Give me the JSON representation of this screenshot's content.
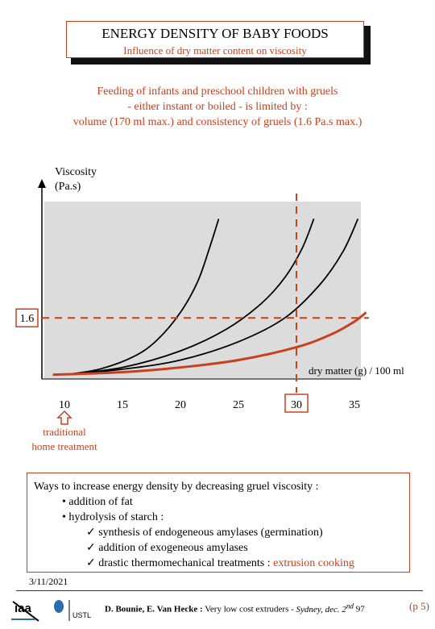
{
  "header": {
    "title": "ENERGY DENSITY OF BABY FOODS",
    "subtitle": "Influence of dry matter content on viscosity"
  },
  "intro": {
    "line1": "Feeding of infants and preschool children with gruels",
    "line2": "- either instant or boiled - is limited by :",
    "line3": "volume (170 ml max.) and consistency of gruels (1.6 Pa.s max.)"
  },
  "chart_data": {
    "type": "line",
    "ylabel_line1": "Viscosity",
    "ylabel_line2": "(Pa.s)",
    "xlabel": "dry matter (g) / 100 ml",
    "x_ticks": [
      "10",
      "15",
      "20",
      "25",
      "30",
      "35"
    ],
    "x_tick_values": [
      10,
      15,
      20,
      25,
      30,
      35
    ],
    "xlim": [
      9,
      36
    ],
    "y_threshold_label": "1.6",
    "y_threshold": 1.6,
    "x_threshold": 30,
    "traditional_label_line1": "traditional",
    "traditional_label_line2": "home treatment",
    "series": [
      {
        "color": "#000000",
        "x": [
          10,
          13,
          16,
          18,
          20,
          21.5,
          22.5,
          23.3
        ],
        "y": [
          0.05,
          0.2,
          0.55,
          1.0,
          1.75,
          2.6,
          3.5,
          4.3
        ]
      },
      {
        "color": "#000000",
        "x": [
          10,
          15,
          20,
          24,
          27,
          29,
          30.5,
          31.5
        ],
        "y": [
          0.05,
          0.25,
          0.7,
          1.3,
          2.0,
          2.7,
          3.5,
          4.3
        ]
      },
      {
        "color": "#000000",
        "x": [
          10,
          15,
          20,
          25,
          29,
          32,
          34,
          35.3
        ],
        "y": [
          0.05,
          0.2,
          0.45,
          0.95,
          1.6,
          2.5,
          3.4,
          4.3
        ]
      },
      {
        "color": "#c8401e",
        "x": [
          9,
          15,
          20,
          25,
          30,
          33,
          35,
          36
        ],
        "y": [
          0.05,
          0.12,
          0.25,
          0.45,
          0.8,
          1.15,
          1.5,
          1.75
        ]
      }
    ],
    "colors": {
      "accent": "#c8401e",
      "plot_bg": "#dcdcdc",
      "axis": "#000000"
    }
  },
  "ways": {
    "title": "Ways to increase energy density by decreasing gruel viscosity :",
    "bullet1": "• addition of fat",
    "bullet2": "• hydrolysis of starch :",
    "check1": "✓ synthesis of endogeneous amylases (germination)",
    "check2": "✓ addition of exogeneous amylases",
    "check3_prefix": "✓ drastic thermomechanical treatments : ",
    "check3_highlight": "extrusion cooking"
  },
  "footer": {
    "date": "3/11/2021",
    "credits_bold": "D. Bounie, E. Van Hecke :",
    "credits_rest": " Very low cost extruders - ",
    "credits_italic": "Sydney, dec. 2",
    "credits_sup": "nd",
    "credits_end": " 97",
    "page": "(p 5)",
    "logo_left": "iaa",
    "logo_right": "USTL"
  }
}
